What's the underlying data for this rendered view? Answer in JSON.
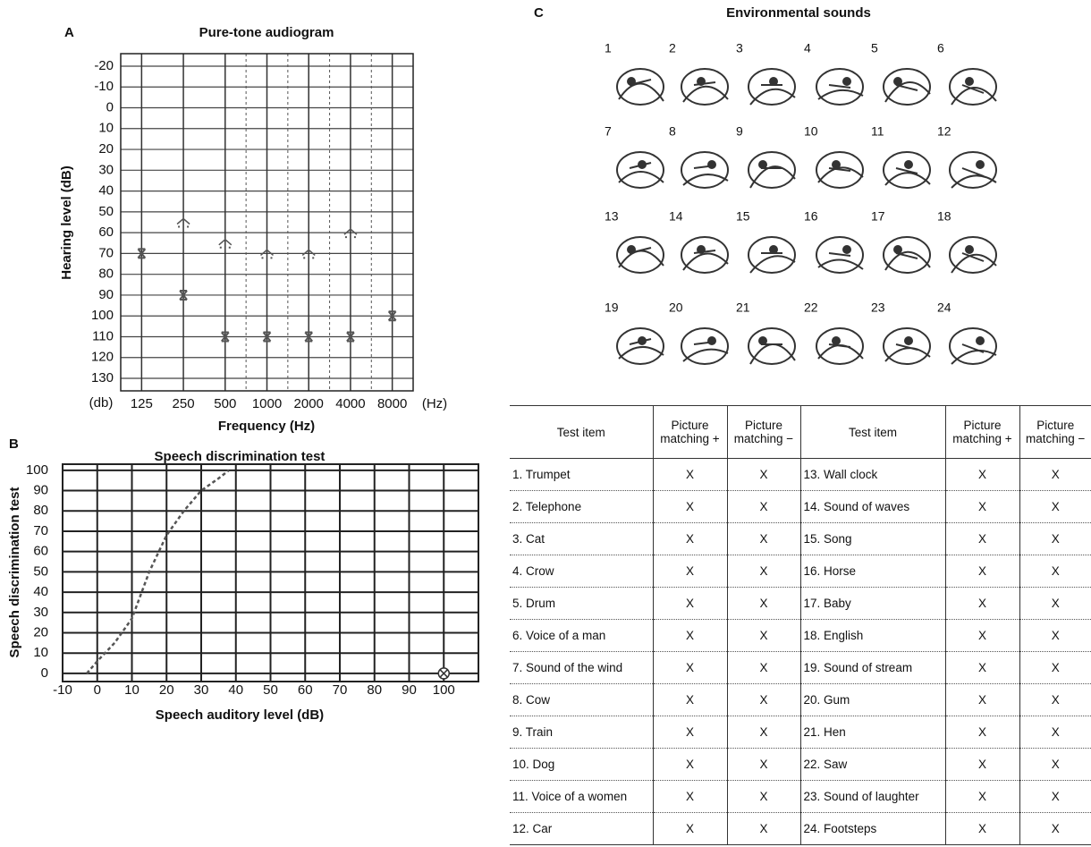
{
  "chart_data": [
    {
      "type": "scatter",
      "panel": "A",
      "title": "Pure-tone audiogram",
      "y_label": "Hearing level (dB)",
      "x_label": "Frequency (Hz)",
      "x_unit_left": "(db)",
      "x_unit_right": "(Hz)",
      "categories": [
        "125",
        "250",
        "500",
        "1000",
        "2000",
        "4000",
        "8000"
      ],
      "series": [
        {
          "marker": "chevron",
          "color": "#555555",
          "values": [
            null,
            55,
            65,
            70,
            70,
            60,
            null
          ]
        },
        {
          "marker": "x",
          "color": "#555555",
          "values": [
            70,
            90,
            110,
            110,
            110,
            110,
            100
          ]
        }
      ],
      "ylim": [
        -26,
        136
      ],
      "y_inverted": true,
      "yticks": [
        -20,
        -10,
        0,
        10,
        20,
        30,
        40,
        50,
        60,
        70,
        80,
        90,
        100,
        110,
        120,
        130
      ],
      "grid": true
    },
    {
      "type": "line",
      "panel": "B",
      "title": "Speech discrimination test",
      "y_label": "Speech discrimination test",
      "x_label": "Speech auditory level (dB)",
      "series": [
        {
          "style": "dashed",
          "color": "#555555",
          "x": [
            -3,
            0,
            5,
            10,
            15,
            20,
            25,
            30,
            35,
            38
          ],
          "values": [
            0,
            6,
            15,
            27,
            50,
            68,
            80,
            90,
            96,
            100
          ]
        },
        {
          "style": "marker",
          "marker": "circle-x",
          "color": "#333333",
          "x": [
            100
          ],
          "values": [
            0
          ]
        }
      ],
      "xlim": [
        -10,
        110
      ],
      "ylim": [
        -4,
        103
      ],
      "xticks": [
        -10,
        0,
        10,
        20,
        30,
        40,
        50,
        60,
        70,
        80,
        90,
        100
      ],
      "yticks": [
        0,
        10,
        20,
        30,
        40,
        50,
        60,
        70,
        80,
        90,
        100
      ],
      "grid": true
    }
  ],
  "panel_c": {
    "panel": "C",
    "title": "Environmental sounds",
    "pictures": [
      "1",
      "2",
      "3",
      "4",
      "5",
      "6",
      "7",
      "8",
      "9",
      "10",
      "11",
      "12",
      "13",
      "14",
      "15",
      "16",
      "17",
      "18",
      "19",
      "20",
      "21",
      "22",
      "23",
      "24"
    ],
    "table": {
      "header": [
        "Test item",
        "Picture matching +",
        "Picture matching −",
        "Test item",
        "Picture matching +",
        "Picture matching −"
      ],
      "rows": [
        [
          "1. Trumpet",
          "X",
          "X",
          "13. Wall clock",
          "X",
          "X"
        ],
        [
          "2. Telephone",
          "X",
          "X",
          "14. Sound of waves",
          "X",
          "X"
        ],
        [
          "3. Cat",
          "X",
          "X",
          "15. Song",
          "X",
          "X"
        ],
        [
          "4. Crow",
          "X",
          "X",
          "16. Horse",
          "X",
          "X"
        ],
        [
          "5. Drum",
          "X",
          "X",
          "17. Baby",
          "X",
          "X"
        ],
        [
          "6. Voice of a man",
          "X",
          "X",
          "18. English",
          "X",
          "X"
        ],
        [
          "7. Sound of the wind",
          "X",
          "X",
          "19. Sound of stream",
          "X",
          "X"
        ],
        [
          "8. Cow",
          "X",
          "X",
          "20. Gum",
          "X",
          "X"
        ],
        [
          "9. Train",
          "X",
          "X",
          "21. Hen",
          "X",
          "X"
        ],
        [
          "10. Dog",
          "X",
          "X",
          "22. Saw",
          "X",
          "X"
        ],
        [
          "11. Voice of a women",
          "X",
          "X",
          "23. Sound of laughter",
          "X",
          "X"
        ],
        [
          "12. Car",
          "X",
          "X",
          "24. Footsteps",
          "X",
          "X"
        ]
      ]
    }
  }
}
